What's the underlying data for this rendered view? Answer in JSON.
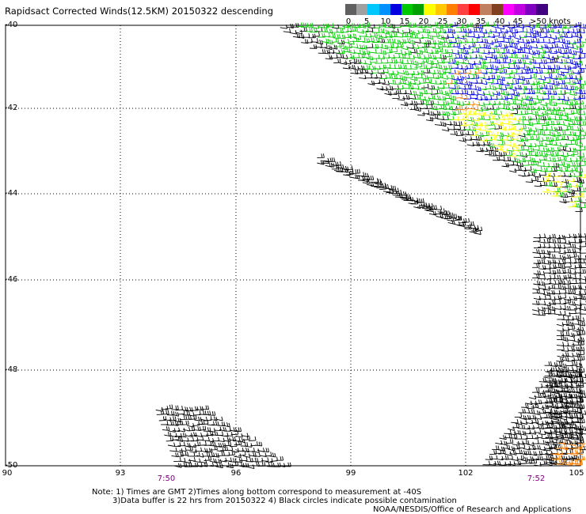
{
  "title": "Rapidsact Corrected Winds(12.5KM) 20150322 descending",
  "colorbar": {
    "colors": [
      "#606060",
      "#a0a0a0",
      "#00c8ff",
      "#0090ff",
      "#0000e0",
      "#00c800",
      "#00a000",
      "#ffff00",
      "#ffc800",
      "#ff8000",
      "#ff4040",
      "#ff0000",
      "#c08060",
      "#804020",
      "#ff00ff",
      "#c000e0",
      "#8000c0",
      "#400080"
    ],
    "labels": [
      "0",
      "5",
      "10",
      "15",
      "20",
      "25",
      "30",
      "35",
      "40",
      "45",
      ">50 knots"
    ]
  },
  "map": {
    "lon_ticks": [
      "90",
      "93",
      "96",
      "99",
      "102",
      "105"
    ],
    "lat_ticks": [
      "-40",
      "-42",
      "-44",
      "-46",
      "-48",
      "-50"
    ],
    "time_labels": [
      "7:50",
      "7:52"
    ]
  },
  "notes": {
    "line1": "Note: 1) Times are GMT 2)Times along bottom correspond to measurement at -40S",
    "line2": "3)Data buffer is 22 hrs from 20150322 4) Black circles indicate possible contamination",
    "line3": "NOAA/NESDIS/Office of Research and Applications"
  },
  "barb_colors": {
    "lt15": "#000000",
    "c15": "#0000e0",
    "c20": "#00c800",
    "c25": "#ffff00",
    "c30": "#ff8000"
  }
}
